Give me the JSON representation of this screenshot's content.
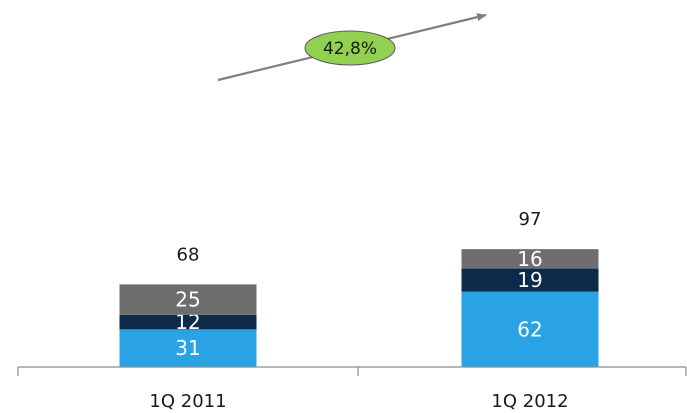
{
  "chart_data": {
    "type": "bar",
    "stacked": true,
    "categories": [
      "1Q 2011",
      "1Q 2012"
    ],
    "series": [
      {
        "values": [
          31,
          62
        ],
        "color": "#29a3e3"
      },
      {
        "values": [
          12,
          19
        ],
        "color": "#0c2a4a"
      },
      {
        "values": [
          25,
          16
        ],
        "color": "#6e6e6e"
      }
    ],
    "totals": [
      68,
      97
    ],
    "annotation": {
      "text": "42,8%",
      "shape": "arrow-with-ellipse",
      "fill": "#92d050"
    },
    "grid": false,
    "legend": "none"
  }
}
